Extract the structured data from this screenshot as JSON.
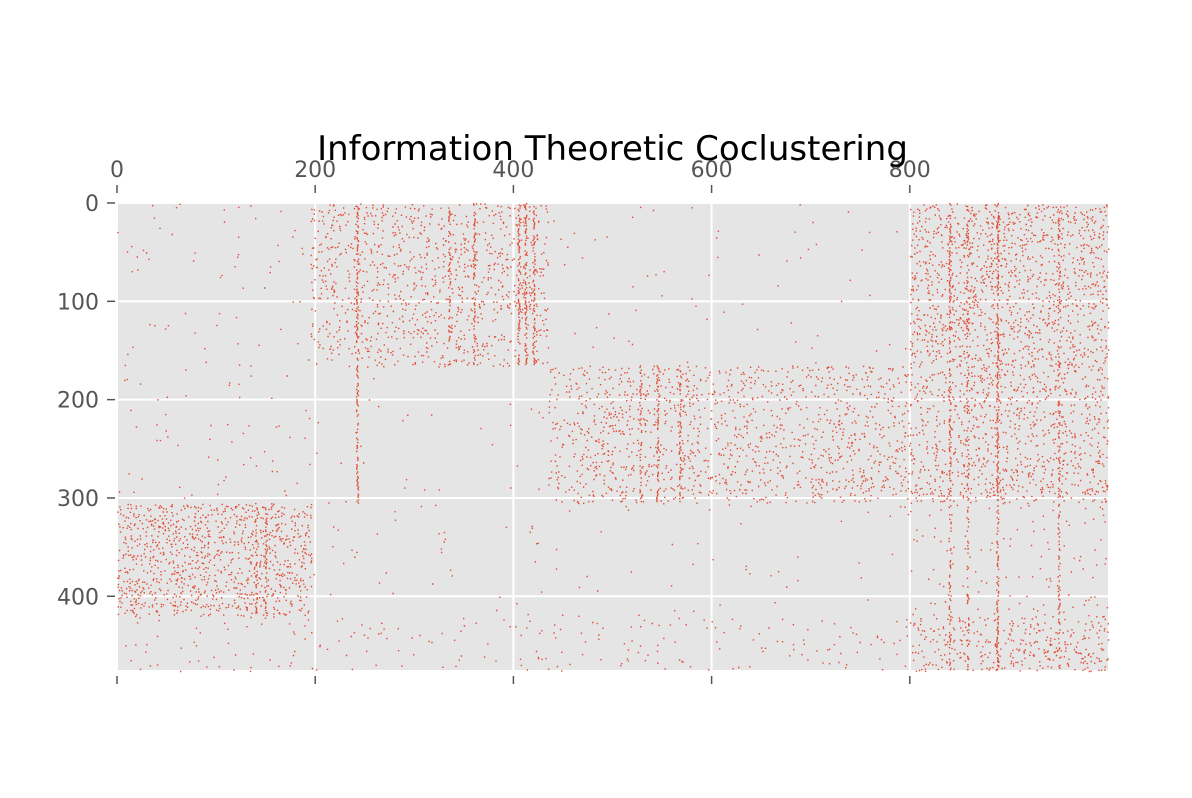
{
  "chart_data": {
    "type": "heatmap",
    "subtype": "spy (sparse matrix scatter of non-zero entries)",
    "title": "Information Theoretic Coclustering",
    "xlabel": "",
    "ylabel": "",
    "x_axis_position": "top",
    "xlim": [
      0,
      1000
    ],
    "ylim": [
      475,
      0
    ],
    "grid": true,
    "style": "ggplot",
    "x_ticks": [
      0,
      200,
      400,
      600,
      800
    ],
    "y_ticks": [
      0,
      100,
      200,
      300,
      400
    ],
    "x_tick_labels": [
      "0",
      "200",
      "400",
      "600",
      "800"
    ],
    "y_tick_labels": [
      "0",
      "100",
      "200",
      "300",
      "400"
    ],
    "colors": {
      "marker": "#E24A33",
      "axes_background": "#E5E5E5",
      "grid": "#FFFFFF",
      "tick_text": "#555555",
      "title_text": "#000000"
    },
    "column_clusters": [
      [
        0,
        195
      ],
      [
        195,
        435
      ],
      [
        435,
        800
      ],
      [
        800,
        1000
      ]
    ],
    "row_clusters": [
      [
        0,
        165
      ],
      [
        165,
        305
      ],
      [
        305,
        420
      ],
      [
        420,
        475
      ]
    ],
    "block_density": [
      [
        0.015,
        0.2,
        0.008,
        0.3
      ],
      [
        0.018,
        0.01,
        0.2,
        0.25
      ],
      [
        0.35,
        0.01,
        0.008,
        0.04
      ],
      [
        0.04,
        0.04,
        0.05,
        0.25
      ]
    ],
    "dense_columns": [
      {
        "x": 242,
        "row_range": [
          0,
          305
        ],
        "density": 0.6
      },
      {
        "x": 335,
        "row_range": [
          0,
          165
        ],
        "density": 0.5
      },
      {
        "x": 360,
        "row_range": [
          0,
          165
        ],
        "density": 0.5
      },
      {
        "x": 405,
        "row_range": [
          0,
          165
        ],
        "density": 0.7
      },
      {
        "x": 412,
        "row_range": [
          0,
          165
        ],
        "density": 0.6
      },
      {
        "x": 420,
        "row_range": [
          0,
          165
        ],
        "density": 0.6
      },
      {
        "x": 528,
        "row_range": [
          165,
          305
        ],
        "density": 0.5
      },
      {
        "x": 545,
        "row_range": [
          165,
          305
        ],
        "density": 0.5
      },
      {
        "x": 568,
        "row_range": [
          165,
          305
        ],
        "density": 0.5
      },
      {
        "x": 840,
        "row_range": [
          0,
          475
        ],
        "density": 0.5
      },
      {
        "x": 858,
        "row_range": [
          0,
          475
        ],
        "density": 0.4
      },
      {
        "x": 888,
        "row_range": [
          0,
          475
        ],
        "density": 0.7
      },
      {
        "x": 950,
        "row_range": [
          0,
          475
        ],
        "density": 0.4
      },
      {
        "x": 140,
        "row_range": [
          305,
          420
        ],
        "density": 0.6
      },
      {
        "x": 150,
        "row_range": [
          305,
          420
        ],
        "density": 0.5
      }
    ]
  }
}
